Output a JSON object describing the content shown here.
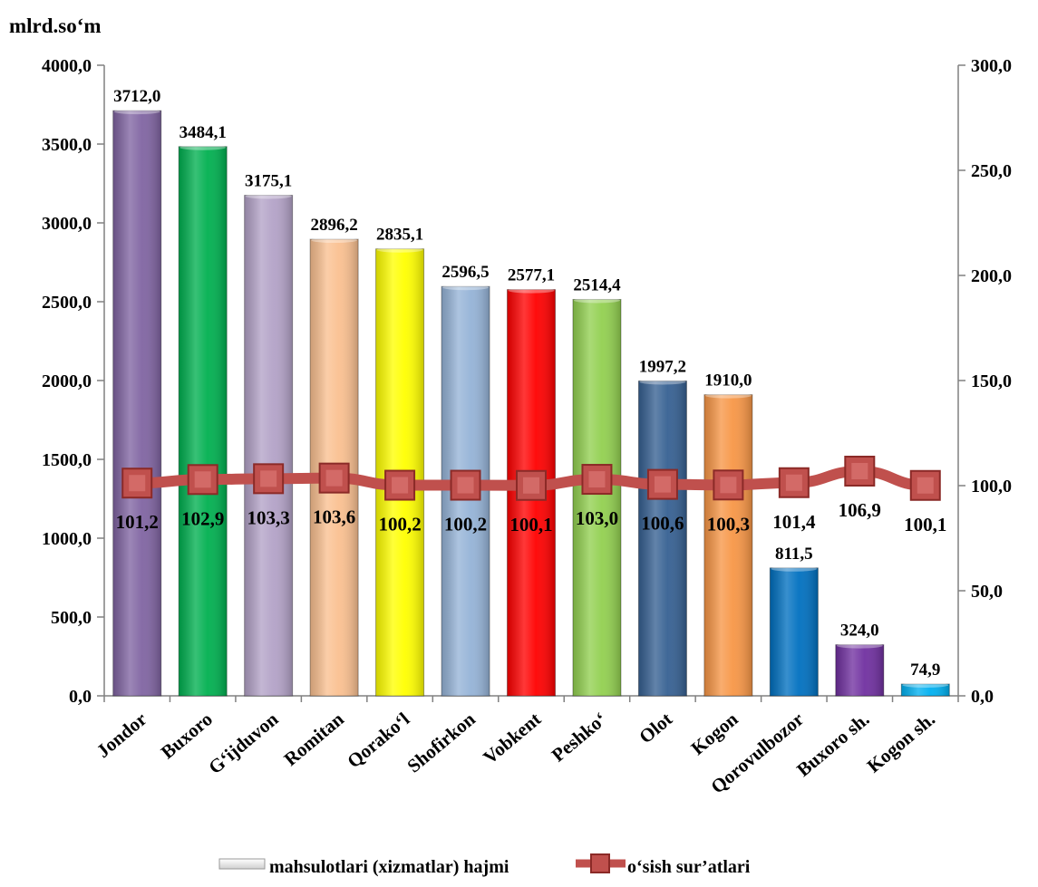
{
  "chart_data": {
    "type": "bar",
    "unit_label": "mlrd.so‘m",
    "categories": [
      "Jondor",
      "Buxoro",
      "G‘ijduvon",
      "Romitan",
      "Qorako‘l",
      "Shofirkon",
      "Vobkent",
      "Peshko‘",
      "Olot",
      "Kogon",
      "Qorovulbozor",
      "Buxoro sh.",
      "Kogon sh."
    ],
    "value_labels": [
      "3712,0",
      "3484,1",
      "3175,1",
      "2896,2",
      "2835,1",
      "2596,5",
      "2577,1",
      "2514,4",
      "1997,2",
      "1910,0",
      "811,5",
      "324,0",
      "74,9"
    ],
    "growth_labels": [
      "101,2",
      "102,9",
      "103,3",
      "103,6",
      "100,2",
      "100,2",
      "100,1",
      "103,0",
      "100,6",
      "100,3",
      "101,4",
      "106,9",
      "100,1"
    ],
    "series": [
      {
        "name": "mahsulotlari (xizmatlar) hajmi",
        "type": "bar",
        "axis": "left",
        "values": [
          3712.0,
          3484.1,
          3175.1,
          2896.2,
          2835.1,
          2596.5,
          2577.1,
          2514.4,
          1997.2,
          1910.0,
          811.5,
          324.0,
          74.9
        ],
        "colors": [
          "#8064A2",
          "#00B050",
          "#B3A2C7",
          "#FAC090",
          "#FFFF00",
          "#95B3D7",
          "#FF0000",
          "#92D050",
          "#366092",
          "#F79646",
          "#0070C0",
          "#7030A0",
          "#00B0F0"
        ]
      },
      {
        "name": "o‘sish sur’atlari",
        "type": "line",
        "axis": "right",
        "values": [
          101.2,
          102.9,
          103.3,
          103.6,
          100.2,
          100.2,
          100.1,
          103.0,
          100.6,
          100.3,
          101.4,
          106.9,
          100.1
        ],
        "color": "#C0504D"
      }
    ],
    "y_left": {
      "min": 0,
      "max": 4000,
      "ticks": [
        "0,0",
        "500,0",
        "1000,0",
        "1500,0",
        "2000,0",
        "2500,0",
        "3000,0",
        "3500,0",
        "4000,0"
      ]
    },
    "y_right": {
      "min": 0,
      "max": 300,
      "ticks": [
        "0,0",
        "50,0",
        "100,0",
        "150,0",
        "200,0",
        "250,0",
        "300,0"
      ]
    },
    "grid": false,
    "legend_position": "bottom"
  }
}
